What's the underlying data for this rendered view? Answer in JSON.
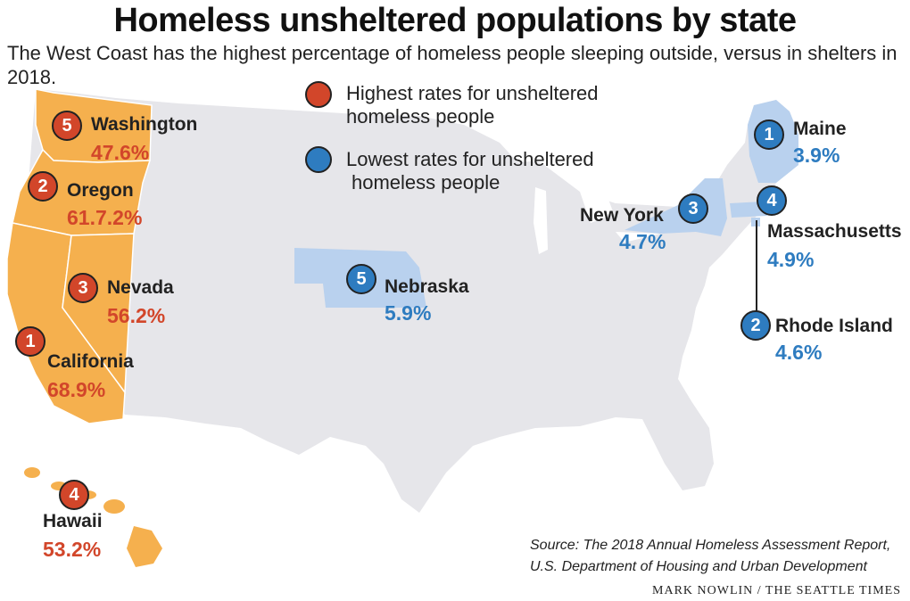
{
  "title": "Homeless unsheltered populations by state",
  "subtitle": "The West Coast has the highest percentage of homeless people sleeping outside, versus in shelters in 2018.",
  "legend": {
    "high": {
      "line1": "Highest rates for unsheltered",
      "line2": "homeless people",
      "color": "#d2462a"
    },
    "low": {
      "line1": "Lowest rates for unsheltered",
      "line2": "homeless people",
      "color": "#2e7cc0"
    }
  },
  "colors": {
    "high_fill": "#f5b04e",
    "low_fill": "#b9d1ee",
    "base_fill": "#e6e6ea",
    "high_text": "#d2462a",
    "low_text": "#2e7cc0"
  },
  "states": {
    "washington": {
      "rank": "5",
      "name": "Washington",
      "value": "47.6%"
    },
    "oregon": {
      "rank": "2",
      "name": "Oregon",
      "value": "61.7.2%"
    },
    "nevada": {
      "rank": "3",
      "name": "Nevada",
      "value": "56.2%"
    },
    "california": {
      "rank": "1",
      "name": "California",
      "value": "68.9%"
    },
    "hawaii": {
      "rank": "4",
      "name": "Hawaii",
      "value": "53.2%"
    },
    "maine": {
      "rank": "1",
      "name": "Maine",
      "value": "3.9%"
    },
    "new_york": {
      "rank": "3",
      "name": "New York",
      "value": "4.7%"
    },
    "massachusetts": {
      "rank": "4",
      "name": "Massachusetts",
      "value": "4.9%"
    },
    "rhode_island": {
      "rank": "2",
      "name": "Rhode Island",
      "value": "4.6%"
    },
    "nebraska": {
      "rank": "5",
      "name": "Nebraska",
      "value": "5.9%"
    }
  },
  "source": {
    "line1": "Source: The 2018 Annual Homeless Assessment Report,",
    "line2": "U.S. Department of Housing and Urban Development"
  },
  "credit": "MARK NOWLIN / THE SEATTLE TIMES"
}
